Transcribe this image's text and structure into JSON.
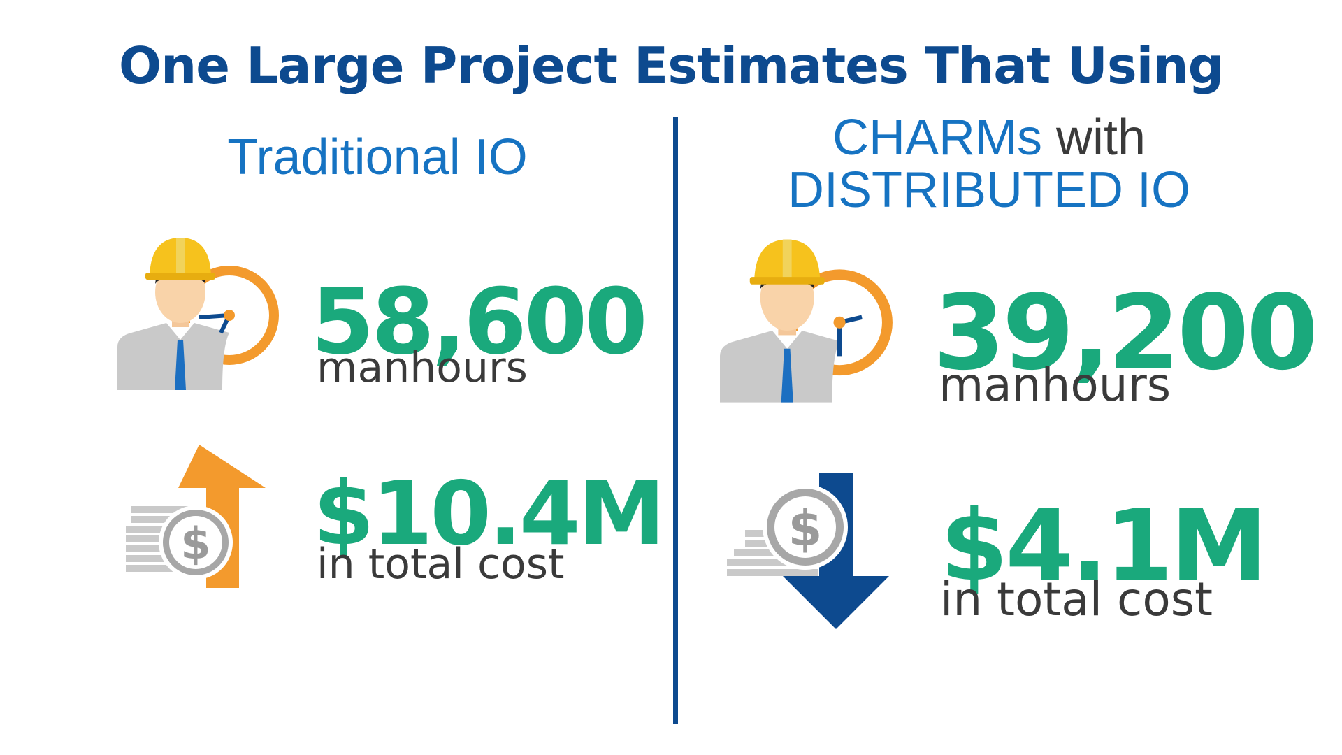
{
  "title": "One Large Project Estimates That Using",
  "left": {
    "heading": "Traditional IO",
    "manhours": {
      "value": "58,600",
      "unit": "manhours"
    },
    "cost": {
      "value": "$10.4M",
      "unit": "in total cost",
      "trend": "up"
    }
  },
  "right": {
    "heading_highlight": "CHARMs",
    "heading_connector": "with",
    "heading_line2": "DISTRIBUTED IO",
    "manhours": {
      "value": "39,200",
      "unit": "manhours"
    },
    "cost": {
      "value": "$4.1M",
      "unit": "in total cost",
      "trend": "down"
    }
  },
  "icons": {
    "worker": "worker-clock-icon",
    "cost_up": "money-arrow-up-icon",
    "cost_down": "money-arrow-down-icon",
    "coin_symbol": "$"
  },
  "colors": {
    "title": "#0d4a8f",
    "heading": "#1673c2",
    "metric": "#1aa97c",
    "text": "#3a3a3a",
    "clock": "#f39a2d",
    "helmet": "#f6c21d",
    "arrow_up": "#f39a2d",
    "arrow_down": "#0d4a8f"
  }
}
